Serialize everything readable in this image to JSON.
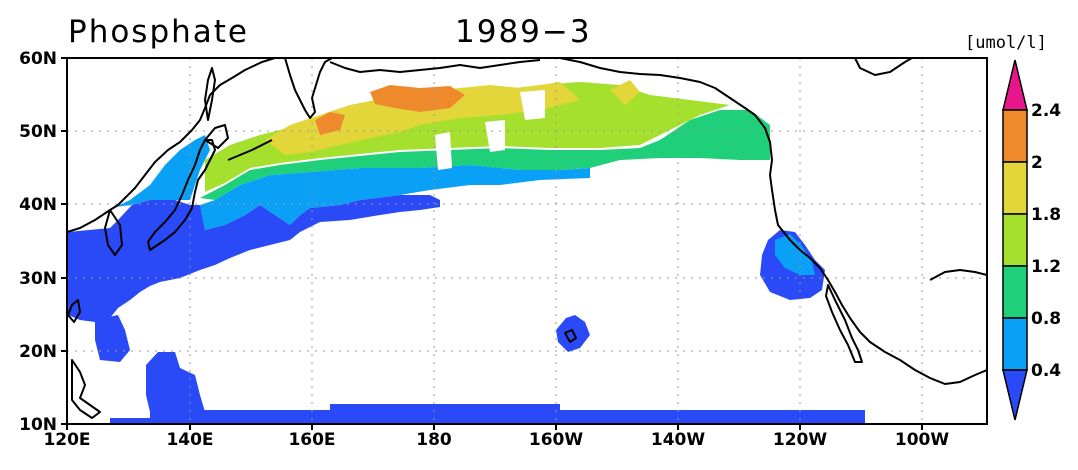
{
  "title": {
    "variable": "Phosphate",
    "period": "1989−3"
  },
  "map": {
    "region": "North Pacific",
    "lon_range": [
      "120E",
      "90W"
    ],
    "lat_range": [
      "10N",
      "60N"
    ],
    "grid": true,
    "x_ticks": [
      "120E",
      "140E",
      "160E",
      "180",
      "160W",
      "140W",
      "120W",
      "100W"
    ],
    "y_ticks": [
      "60N",
      "50N",
      "40N",
      "30N",
      "20N",
      "10N"
    ],
    "coastline_color": "#000000",
    "ocean_no_data_color": "#ffffff"
  },
  "colorbar": {
    "unit": "[umol/l]",
    "levels": [
      "2.4",
      "2",
      "1.8",
      "1.2",
      "0.8",
      "0.4"
    ],
    "colors": {
      "above_2_4": "#e8168c",
      "2_to_2_4": "#ef8a2c",
      "1_8_to_2": "#e2d63b",
      "1_2_to_1_8": "#a6e02e",
      "0_8_to_1_2": "#1fcf7a",
      "0_4_to_0_8": "#0aa0f5",
      "below_0_4": "#2b4af7"
    }
  }
}
